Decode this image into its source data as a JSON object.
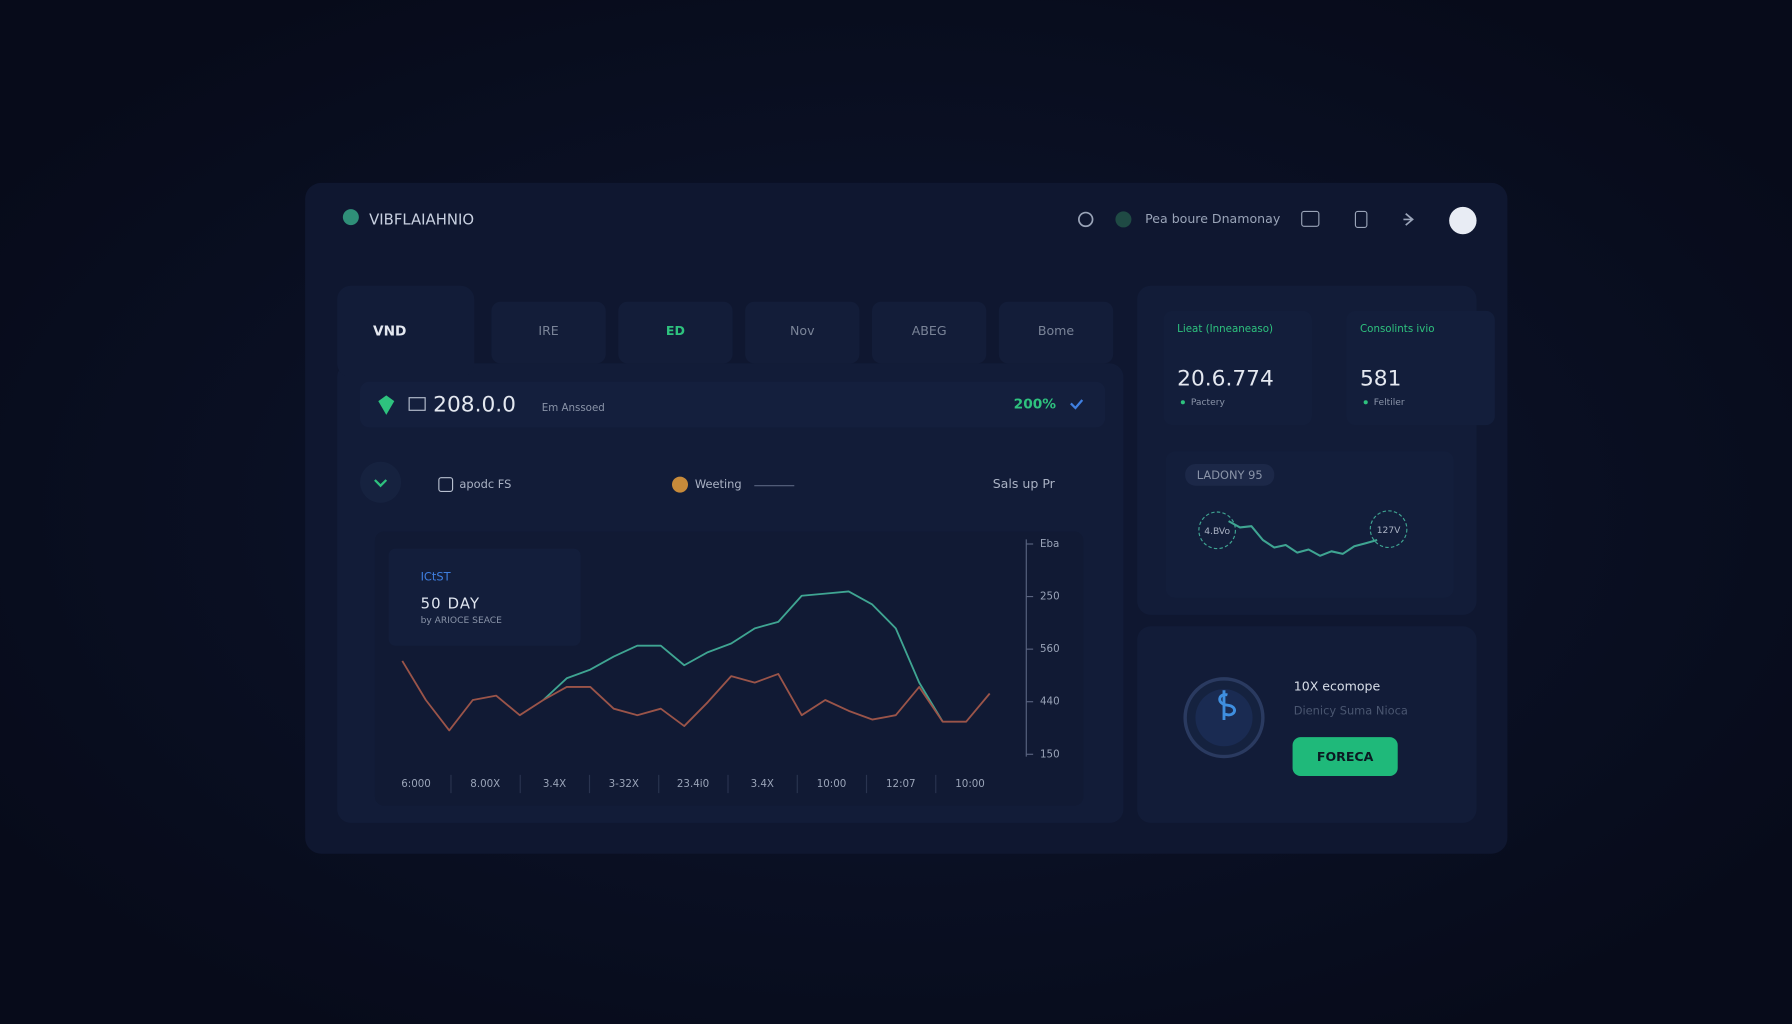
{
  "header": {
    "brand": "VIBFLAIAHNIO",
    "user": "Pea boure Dnamonay"
  },
  "tabs": [
    "VND",
    "IRE",
    "ED",
    "Nov",
    "ABEG",
    "Bome"
  ],
  "balance": {
    "amount": "208.0.0",
    "note": "Em Anssoed",
    "change": "200%"
  },
  "toolbar": {
    "option": "apodc FS",
    "legend": "Weeting",
    "sort": "Sals up Pr"
  },
  "chart": {
    "type": "line",
    "tag": "ICtST",
    "title": "50 DAY",
    "subtitle": "by ARIOCE SEACE",
    "categories": [
      "6:000",
      "8.00X",
      "3.4X",
      "3-32X",
      "23.4i0",
      "3.4X",
      "10:00",
      "12:07",
      "10:00"
    ],
    "y_axis_labels": [
      "Eba",
      "250",
      "560",
      "440",
      "150"
    ],
    "ylim": [
      0,
      100
    ],
    "series": [
      {
        "color": "#3fa592",
        "values": [
          null,
          null,
          null,
          null,
          null,
          null,
          25,
          35,
          39,
          45,
          50,
          50,
          41,
          47,
          51,
          58,
          61,
          73,
          74,
          75,
          69,
          58,
          33,
          15,
          null,
          null
        ]
      },
      {
        "color": "#9a5449",
        "values": [
          43,
          25,
          11,
          25,
          27,
          18,
          25,
          31,
          31,
          21,
          18,
          21,
          13,
          24,
          36,
          33,
          37,
          18,
          25,
          20,
          16,
          18,
          31,
          15,
          15,
          28
        ]
      }
    ]
  },
  "stats": [
    {
      "label": "Lieat (Inneaneaso)",
      "value": "20.6.774",
      "sub": "Pactery"
    },
    {
      "label": "Consolints ivio",
      "value": "581",
      "sub": "Feltiler"
    }
  ],
  "mini_chart": {
    "type": "line",
    "title": "LADONY 95",
    "start_label": "4.BVo",
    "end_label": "127V",
    "ylim": [
      0,
      100
    ],
    "color": "#3fa592",
    "values": [
      80,
      70,
      72,
      50,
      38,
      42,
      30,
      35,
      25,
      32,
      28,
      40,
      45,
      50
    ]
  },
  "promo": {
    "title": "10X ecomope",
    "text": "Dienicy Suma Nioca",
    "button": "FORECA"
  }
}
